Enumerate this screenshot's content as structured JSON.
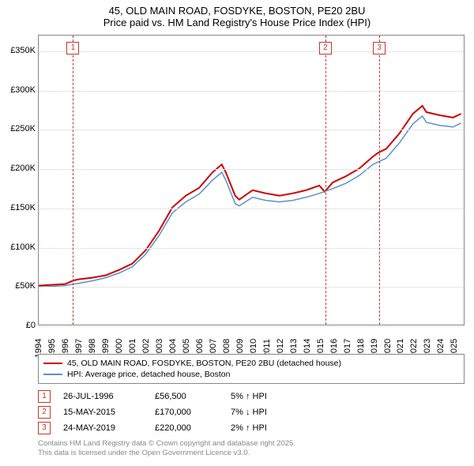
{
  "title": {
    "line1": "45, OLD MAIN ROAD, FOSDYKE, BOSTON, PE20 2BU",
    "line2": "Price paid vs. HM Land Registry's House Price Index (HPI)"
  },
  "chart": {
    "type": "line",
    "background_color": "#ffffff",
    "grid_color": "#e6e6e6",
    "border_color": "#888888",
    "x_range": [
      1994,
      2025.8
    ],
    "y_range": [
      0,
      370000
    ],
    "y_ticks": [
      0,
      50000,
      100000,
      150000,
      200000,
      250000,
      300000,
      350000
    ],
    "y_tick_labels": [
      "£0",
      "£50K",
      "£100K",
      "£150K",
      "£200K",
      "£250K",
      "£300K",
      "£350K"
    ],
    "x_ticks": [
      1994,
      1995,
      1996,
      1997,
      1998,
      1999,
      2000,
      2001,
      2002,
      2003,
      2004,
      2005,
      2006,
      2007,
      2008,
      2009,
      2010,
      2011,
      2012,
      2013,
      2014,
      2015,
      2016,
      2017,
      2018,
      2019,
      2020,
      2021,
      2022,
      2023,
      2024,
      2025
    ],
    "series": [
      {
        "name": "price_paid",
        "label": "45, OLD MAIN ROAD, FOSDYKE, BOSTON, PE20 2BU (detached house)",
        "color": "#cc0000",
        "width": 2,
        "points": [
          [
            1994,
            50000
          ],
          [
            1995,
            51000
          ],
          [
            1996,
            52000
          ],
          [
            1996.6,
            56500
          ],
          [
            1997,
            58000
          ],
          [
            1998,
            60000
          ],
          [
            1999,
            63000
          ],
          [
            2000,
            70000
          ],
          [
            2001,
            78000
          ],
          [
            2002,
            95000
          ],
          [
            2003,
            120000
          ],
          [
            2004,
            150000
          ],
          [
            2005,
            165000
          ],
          [
            2006,
            175000
          ],
          [
            2007,
            195000
          ],
          [
            2007.7,
            205000
          ],
          [
            2008,
            195000
          ],
          [
            2008.7,
            165000
          ],
          [
            2009,
            160000
          ],
          [
            2010,
            172000
          ],
          [
            2011,
            168000
          ],
          [
            2012,
            165000
          ],
          [
            2013,
            168000
          ],
          [
            2014,
            172000
          ],
          [
            2015,
            178000
          ],
          [
            2015.4,
            170000
          ],
          [
            2016,
            182000
          ],
          [
            2017,
            190000
          ],
          [
            2018,
            200000
          ],
          [
            2019,
            215000
          ],
          [
            2019.4,
            220000
          ],
          [
            2020,
            225000
          ],
          [
            2021,
            245000
          ],
          [
            2022,
            270000
          ],
          [
            2022.7,
            280000
          ],
          [
            2023,
            272000
          ],
          [
            2024,
            268000
          ],
          [
            2025,
            265000
          ],
          [
            2025.6,
            270000
          ]
        ]
      },
      {
        "name": "hpi",
        "label": "HPI: Average price, detached house, Boston",
        "color": "#5b8fc7",
        "width": 1.5,
        "points": [
          [
            1994,
            48000
          ],
          [
            1995,
            49000
          ],
          [
            1996,
            50000
          ],
          [
            1997,
            53000
          ],
          [
            1998,
            56000
          ],
          [
            1999,
            60000
          ],
          [
            2000,
            66000
          ],
          [
            2001,
            74000
          ],
          [
            2002,
            90000
          ],
          [
            2003,
            114000
          ],
          [
            2004,
            143000
          ],
          [
            2005,
            157000
          ],
          [
            2006,
            167000
          ],
          [
            2007,
            185000
          ],
          [
            2007.7,
            195000
          ],
          [
            2008,
            185000
          ],
          [
            2008.7,
            155000
          ],
          [
            2009,
            152000
          ],
          [
            2010,
            163000
          ],
          [
            2011,
            159000
          ],
          [
            2012,
            157000
          ],
          [
            2013,
            159000
          ],
          [
            2014,
            163000
          ],
          [
            2015,
            168000
          ],
          [
            2016,
            174000
          ],
          [
            2017,
            181000
          ],
          [
            2018,
            191000
          ],
          [
            2019,
            205000
          ],
          [
            2020,
            213000
          ],
          [
            2021,
            233000
          ],
          [
            2022,
            257000
          ],
          [
            2022.7,
            267000
          ],
          [
            2023,
            259000
          ],
          [
            2024,
            255000
          ],
          [
            2025,
            253000
          ],
          [
            2025.6,
            258000
          ]
        ]
      }
    ],
    "events": [
      {
        "n": "1",
        "x": 1996.56,
        "date": "26-JUL-1996",
        "price": "£56,500",
        "delta": "5% ↑ HPI"
      },
      {
        "n": "2",
        "x": 2015.37,
        "date": "15-MAY-2015",
        "price": "£170,000",
        "delta": "7% ↓ HPI"
      },
      {
        "n": "3",
        "x": 2019.39,
        "date": "24-MAY-2019",
        "price": "£220,000",
        "delta": "2% ↑ HPI"
      }
    ],
    "event_line_color": "#c0392b"
  },
  "legend": {
    "items": [
      {
        "color": "#cc0000",
        "label": "45, OLD MAIN ROAD, FOSDYKE, BOSTON, PE20 2BU (detached house)"
      },
      {
        "color": "#5b8fc7",
        "label": "HPI: Average price, detached house, Boston"
      }
    ]
  },
  "footer": {
    "line1": "Contains HM Land Registry data © Crown copyright and database right 2025.",
    "line2": "This data is licensed under the Open Government Licence v3.0."
  },
  "label_fontsize": 11,
  "title_fontsize": 13
}
